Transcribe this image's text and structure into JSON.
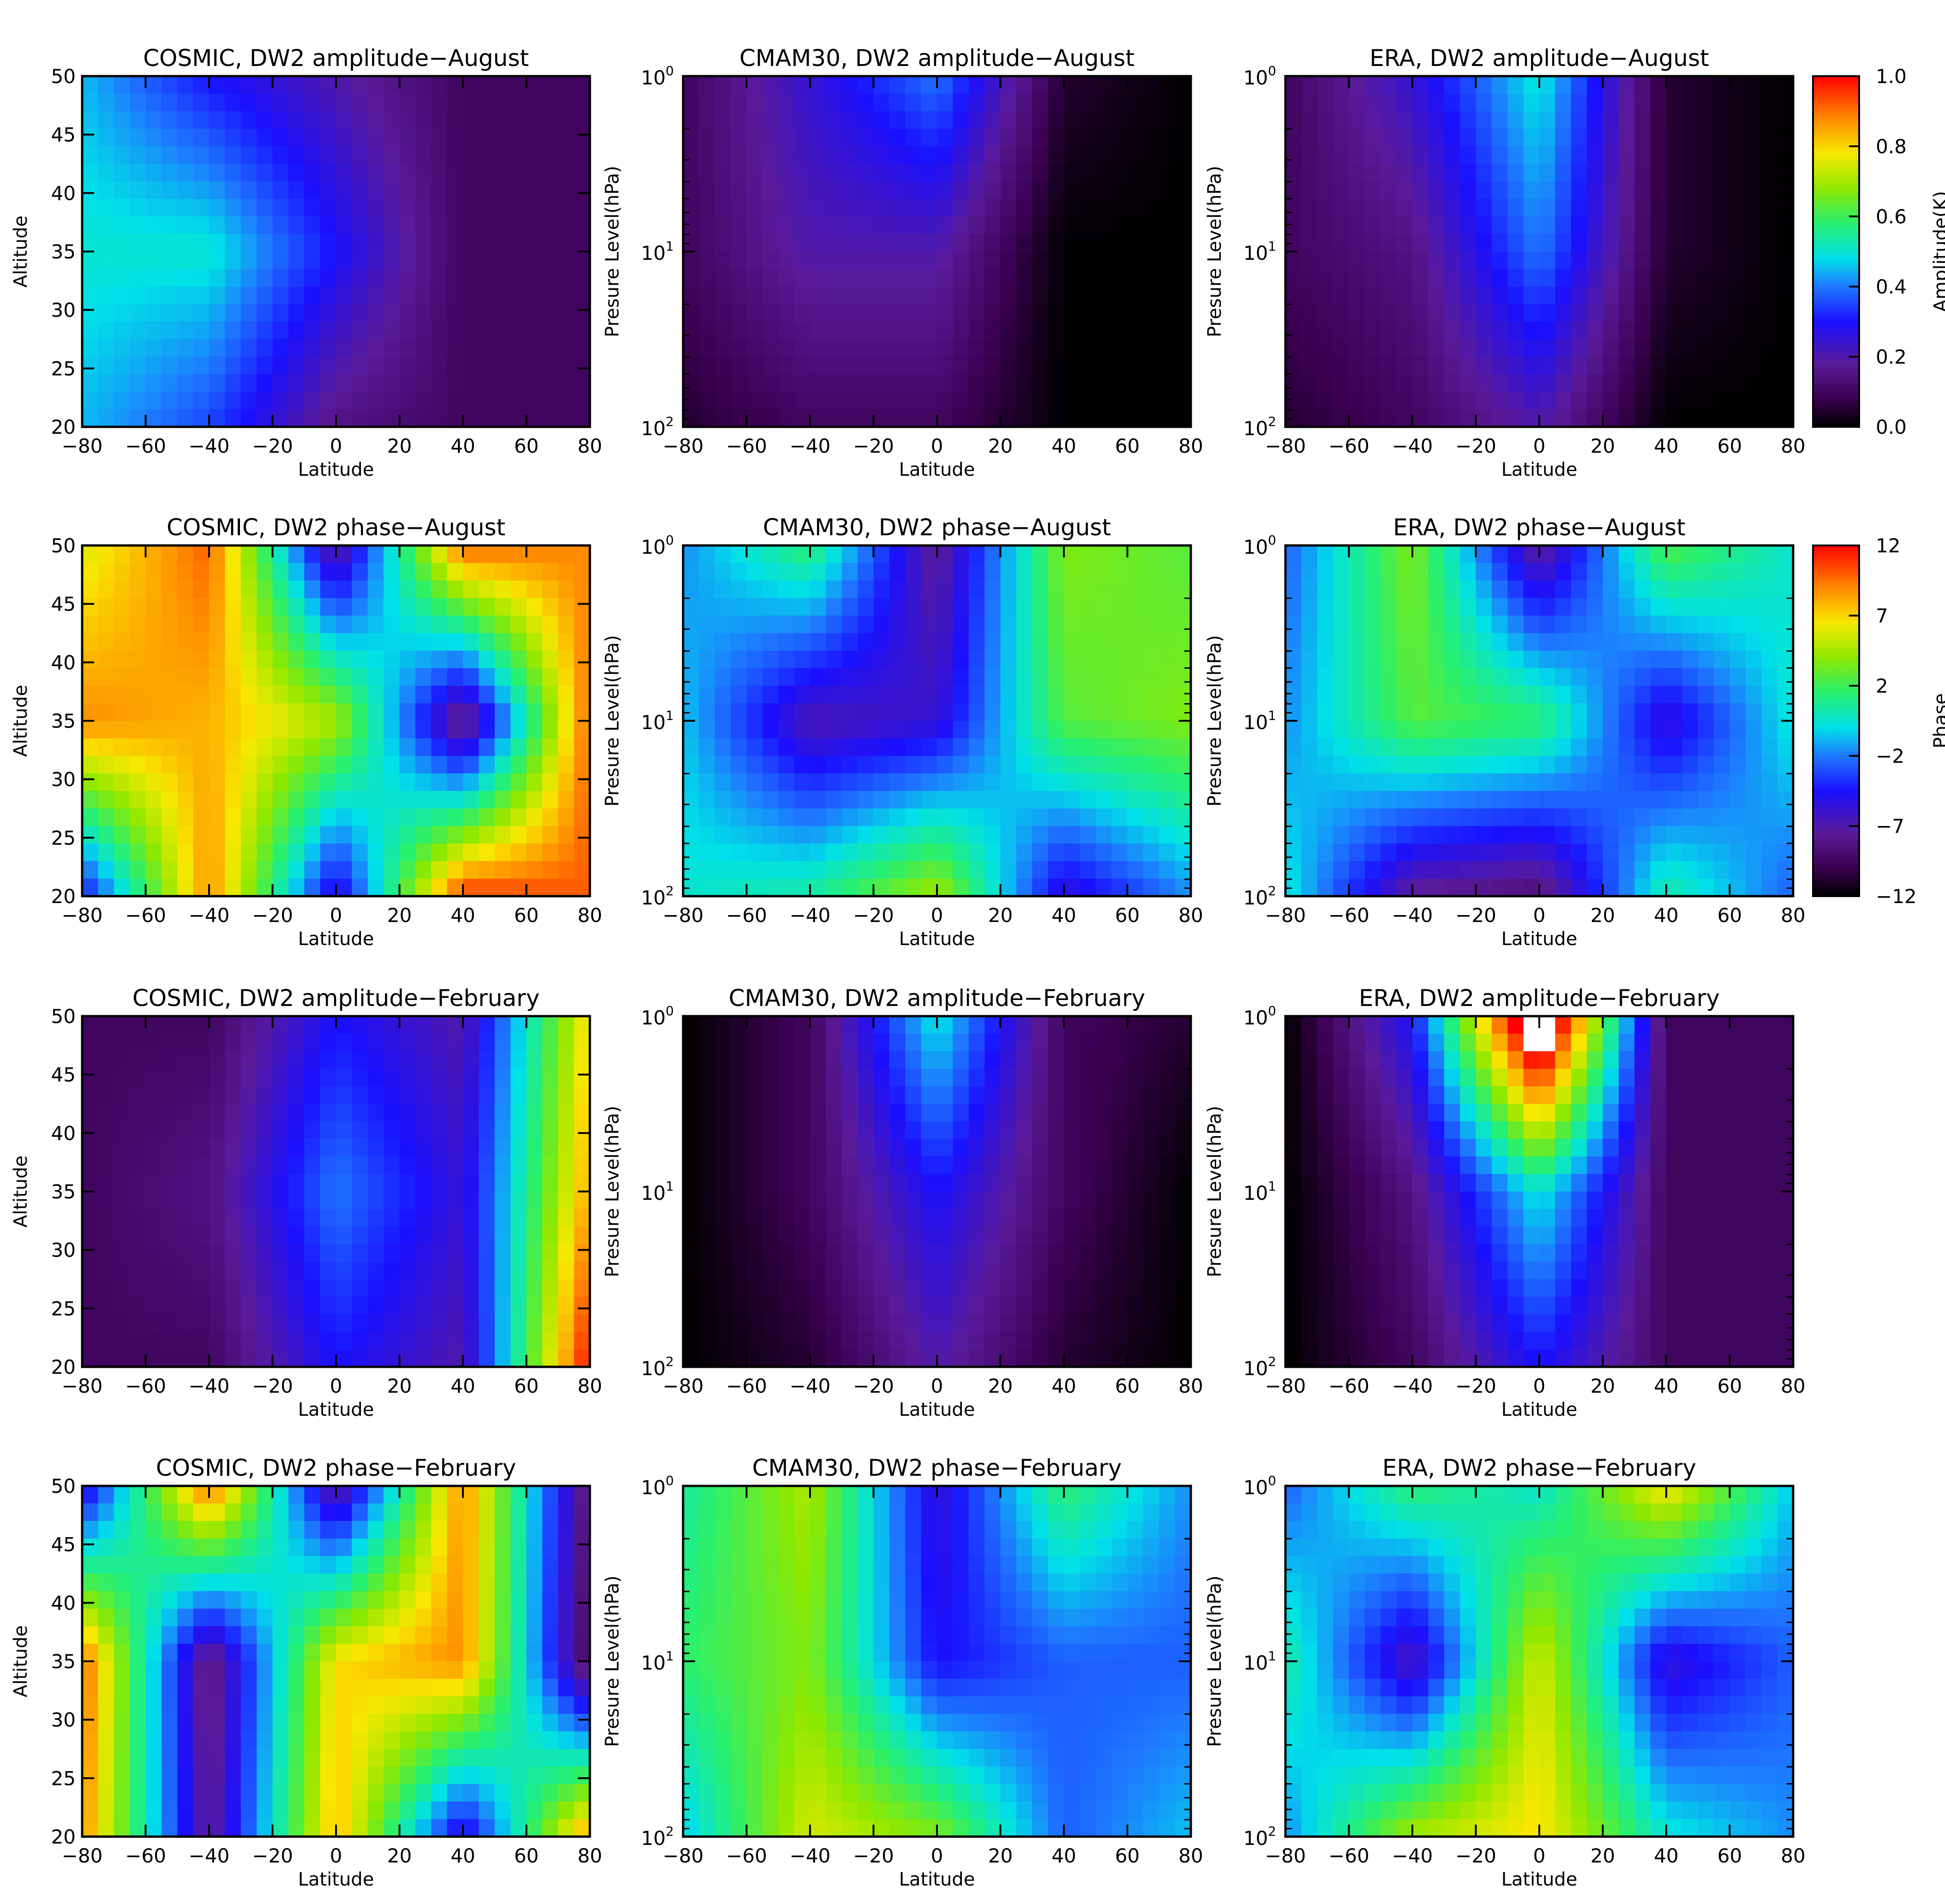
{
  "figure": {
    "rows": [
      {
        "colorbar": {
          "label": "Amplitude(K)",
          "ticks": [
            "0.0",
            "0.2",
            "0.4",
            "0.6",
            "0.8",
            "1.0"
          ],
          "range": [
            0.0,
            1.0
          ]
        },
        "panels": [
          {
            "title": "COSMIC, DW2 amplitude−August",
            "ylabel": "Altitude",
            "kind": "alt"
          },
          {
            "title": "CMAM30, DW2 amplitude−August",
            "ylabel": "Presure Level(hPa)",
            "kind": "pres"
          },
          {
            "title": "ERA, DW2 amplitude−August",
            "ylabel": "Presure Level(hPa)",
            "kind": "pres"
          }
        ]
      },
      {
        "colorbar": {
          "label": "Phase",
          "ticks": [
            "−12",
            "−7",
            "−2",
            "2",
            "7",
            "12"
          ],
          "range": [
            -12,
            12
          ]
        },
        "panels": [
          {
            "title": "COSMIC, DW2 phase−August",
            "ylabel": "Altitude",
            "kind": "alt"
          },
          {
            "title": "CMAM30, DW2 phase−August",
            "ylabel": "Presure Level(hPa)",
            "kind": "pres"
          },
          {
            "title": "ERA, DW2 phase−August",
            "ylabel": "Presure Level(hPa)",
            "kind": "pres"
          }
        ]
      },
      {
        "colorbar": null,
        "panels": [
          {
            "title": "COSMIC, DW2 amplitude−February",
            "ylabel": "Altitude",
            "kind": "alt"
          },
          {
            "title": "CMAM30, DW2 amplitude−February",
            "ylabel": "Presure Level(hPa)",
            "kind": "pres"
          },
          {
            "title": "ERA, DW2 amplitude−February",
            "ylabel": "Presure Level(hPa)",
            "kind": "pres"
          }
        ]
      },
      {
        "colorbar": null,
        "panels": [
          {
            "title": "COSMIC, DW2 phase−February",
            "ylabel": "Altitude",
            "kind": "alt"
          },
          {
            "title": "CMAM30, DW2 phase−February",
            "ylabel": "Presure Level(hPa)",
            "kind": "pres"
          },
          {
            "title": "ERA, DW2 phase−February",
            "ylabel": "Presure Level(hPa)",
            "kind": "pres"
          }
        ]
      }
    ],
    "xlabel": "Latitude",
    "xticks": [
      "−80",
      "−60",
      "−40",
      "−20",
      "0",
      "20",
      "40",
      "60",
      "80"
    ],
    "altticks": [
      "20",
      "25",
      "30",
      "35",
      "40",
      "45",
      "50"
    ],
    "presticks": [
      {
        "base": "10",
        "exp": "0"
      },
      {
        "base": "10",
        "exp": "1"
      },
      {
        "base": "10",
        "exp": "2"
      }
    ]
  },
  "chart_data": [
    {
      "type": "heatmap",
      "title": "COSMIC, DW2 amplitude−August",
      "xlabel": "Latitude",
      "ylabel": "Altitude",
      "x_range": [
        -80,
        80
      ],
      "y_range": [
        20,
        50
      ],
      "units": "K",
      "value_range": [
        0.0,
        1.0
      ],
      "lat": [
        -80,
        -40,
        0,
        40,
        80
      ],
      "y": [
        20,
        35,
        50
      ],
      "z": [
        [
          0.45,
          0.35,
          0.15,
          0.1,
          0.1
        ],
        [
          0.5,
          0.5,
          0.3,
          0.1,
          0.1
        ],
        [
          0.45,
          0.3,
          0.2,
          0.1,
          0.1
        ]
      ]
    },
    {
      "type": "heatmap",
      "title": "CMAM30, DW2 amplitude−August",
      "xlabel": "Latitude",
      "ylabel": "Presure Level(hPa)",
      "x_range": [
        -80,
        80
      ],
      "y_range": [
        100,
        1
      ],
      "y_scale": "log",
      "units": "K",
      "value_range": [
        0.0,
        1.0
      ],
      "lat": [
        -80,
        -40,
        0,
        40,
        80
      ],
      "y": [
        100,
        10,
        1
      ],
      "z": [
        [
          0.05,
          0.1,
          0.1,
          0.0,
          0.0
        ],
        [
          0.1,
          0.2,
          0.2,
          0.0,
          0.0
        ],
        [
          0.1,
          0.25,
          0.4,
          0.05,
          0.0
        ]
      ]
    },
    {
      "type": "heatmap",
      "title": "ERA, DW2 amplitude−August",
      "xlabel": "Latitude",
      "ylabel": "Presure Level(hPa)",
      "x_range": [
        -80,
        80
      ],
      "y_range": [
        100,
        1
      ],
      "y_scale": "log",
      "units": "K",
      "value_range": [
        0.0,
        1.0
      ],
      "lat": [
        -80,
        -40,
        0,
        40,
        80
      ],
      "y": [
        100,
        10,
        1
      ],
      "z": [
        [
          0.05,
          0.1,
          0.2,
          0.0,
          0.0
        ],
        [
          0.1,
          0.15,
          0.4,
          0.05,
          0.0
        ],
        [
          0.1,
          0.25,
          0.5,
          0.05,
          0.0
        ]
      ]
    },
    {
      "type": "heatmap",
      "title": "COSMIC, DW2 phase−August",
      "xlabel": "Latitude",
      "ylabel": "Altitude",
      "x_range": [
        -80,
        80
      ],
      "y_range": [
        20,
        50
      ],
      "value_range": [
        -12,
        12
      ],
      "lat": [
        -80,
        -40,
        0,
        40,
        80
      ],
      "y": [
        20,
        35,
        50
      ],
      "z": [
        [
          -5,
          9,
          -6,
          11,
          10
        ],
        [
          9,
          8,
          5,
          -9,
          10
        ],
        [
          6,
          10,
          -8,
          10,
          9
        ]
      ]
    },
    {
      "type": "heatmap",
      "title": "CMAM30, DW2 phase−August",
      "xlabel": "Latitude",
      "ylabel": "Presure Level(hPa)",
      "x_range": [
        -80,
        80
      ],
      "y_range": [
        100,
        1
      ],
      "y_scale": "log",
      "value_range": [
        -12,
        12
      ],
      "lat": [
        -80,
        -40,
        0,
        40,
        80
      ],
      "y": [
        100,
        10,
        1
      ],
      "z": [
        [
          0,
          1,
          5,
          -6,
          -2
        ],
        [
          -1,
          -7,
          -6,
          3,
          4
        ],
        [
          -2,
          2,
          -8,
          4,
          3
        ]
      ]
    },
    {
      "type": "heatmap",
      "title": "ERA, DW2 phase−August",
      "xlabel": "Latitude",
      "ylabel": "Presure Level(hPa)",
      "x_range": [
        -80,
        80
      ],
      "y_range": [
        100,
        1
      ],
      "y_scale": "log",
      "value_range": [
        -12,
        12
      ],
      "lat": [
        -80,
        -40,
        0,
        40,
        80
      ],
      "y": [
        100,
        10,
        1
      ],
      "z": [
        [
          0,
          -8,
          -9,
          1,
          -3
        ],
        [
          -2,
          3,
          2,
          -6,
          0
        ],
        [
          -3,
          4,
          -8,
          3,
          0
        ]
      ]
    },
    {
      "type": "heatmap",
      "title": "COSMIC, DW2 amplitude−February",
      "xlabel": "Latitude",
      "ylabel": "Altitude",
      "x_range": [
        -80,
        80
      ],
      "y_range": [
        20,
        50
      ],
      "units": "K",
      "value_range": [
        0.0,
        1.0
      ],
      "lat": [
        -80,
        -40,
        0,
        40,
        80
      ],
      "y": [
        20,
        35,
        50
      ],
      "z": [
        [
          0.1,
          0.1,
          0.3,
          0.2,
          1.0
        ],
        [
          0.1,
          0.15,
          0.4,
          0.25,
          0.85
        ],
        [
          0.1,
          0.1,
          0.3,
          0.2,
          0.8
        ]
      ]
    },
    {
      "type": "heatmap",
      "title": "CMAM30, DW2 amplitude−February",
      "xlabel": "Latitude",
      "ylabel": "Presure Level(hPa)",
      "x_range": [
        -80,
        80
      ],
      "y_range": [
        100,
        1
      ],
      "y_scale": "log",
      "units": "K",
      "value_range": [
        0.0,
        1.0
      ],
      "lat": [
        -80,
        -40,
        0,
        40,
        80
      ],
      "y": [
        100,
        10,
        1
      ],
      "z": [
        [
          0.0,
          0.05,
          0.2,
          0.05,
          0.0
        ],
        [
          0.0,
          0.1,
          0.3,
          0.1,
          0.0
        ],
        [
          0.0,
          0.1,
          0.5,
          0.1,
          0.05
        ]
      ]
    },
    {
      "type": "heatmap",
      "title": "ERA, DW2 amplitude−February",
      "xlabel": "Latitude",
      "ylabel": "Presure Level(hPa)",
      "x_range": [
        -80,
        80
      ],
      "y_range": [
        100,
        1
      ],
      "y_scale": "log",
      "units": "K",
      "value_range": [
        0.0,
        1.0
      ],
      "lat": [
        -80,
        -40,
        0,
        40,
        80
      ],
      "y": [
        100,
        10,
        1
      ],
      "z": [
        [
          0.0,
          0.1,
          0.3,
          0.1,
          0.1
        ],
        [
          0.0,
          0.15,
          0.5,
          0.1,
          0.1
        ],
        [
          0.0,
          0.3,
          1.2,
          0.1,
          0.1
        ]
      ]
    },
    {
      "type": "heatmap",
      "title": "COSMIC, DW2 phase−February",
      "xlabel": "Latitude",
      "ylabel": "Altitude",
      "x_range": [
        -80,
        80
      ],
      "y_range": [
        20,
        50
      ],
      "value_range": [
        -12,
        12
      ],
      "lat": [
        -80,
        -40,
        0,
        40,
        80
      ],
      "y": [
        20,
        35,
        50
      ],
      "z": [
        [
          9,
          -8,
          8,
          -6,
          9
        ],
        [
          10,
          -9,
          7,
          9,
          -10
        ],
        [
          -6,
          10,
          -8,
          9,
          -9
        ]
      ]
    },
    {
      "type": "heatmap",
      "title": "CMAM30, DW2 phase−February",
      "xlabel": "Latitude",
      "ylabel": "Presure Level(hPa)",
      "x_range": [
        -80,
        80
      ],
      "y_range": [
        100,
        1
      ],
      "y_scale": "log",
      "value_range": [
        -12,
        12
      ],
      "lat": [
        -80,
        -40,
        0,
        40,
        80
      ],
      "y": [
        100,
        10,
        1
      ],
      "z": [
        [
          -1,
          6,
          4,
          -3,
          -1
        ],
        [
          2,
          4,
          -5,
          -3,
          -3
        ],
        [
          1,
          5,
          -6,
          2,
          -2
        ]
      ]
    },
    {
      "type": "heatmap",
      "title": "ERA, DW2 phase−February",
      "xlabel": "Latitude",
      "ylabel": "Presure Level(hPa)",
      "x_range": [
        -80,
        80
      ],
      "y_range": [
        100,
        1
      ],
      "y_scale": "log",
      "value_range": [
        -12,
        12
      ],
      "lat": [
        -80,
        -40,
        0,
        40,
        80
      ],
      "y": [
        100,
        10,
        1
      ],
      "z": [
        [
          -2,
          5,
          7,
          0,
          -2
        ],
        [
          1,
          -7,
          6,
          -6,
          -3
        ],
        [
          -3,
          2,
          0,
          7,
          -1
        ]
      ]
    }
  ]
}
